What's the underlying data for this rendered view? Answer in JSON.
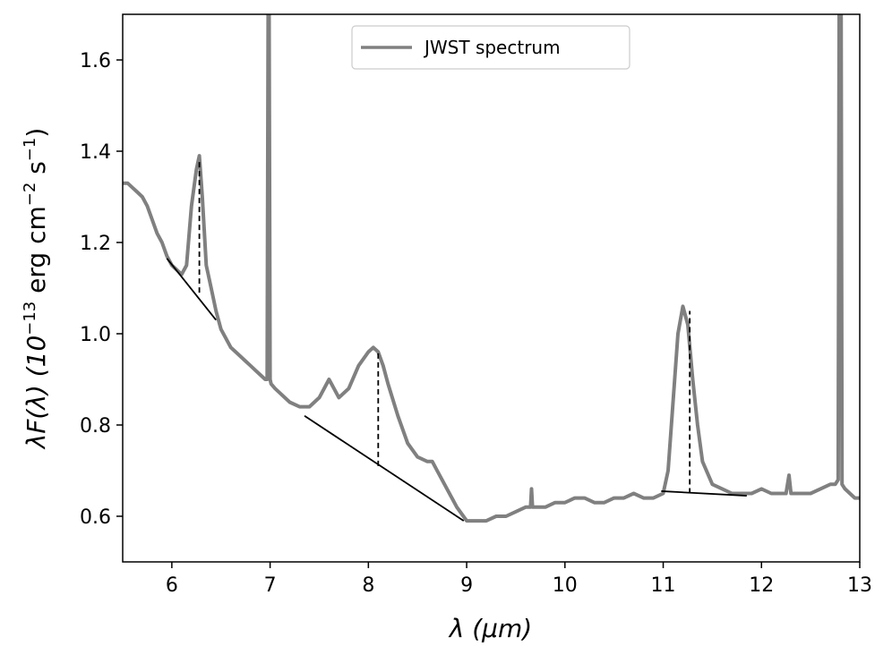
{
  "chart_data": {
    "type": "line",
    "title": "",
    "xlabel": "λ (μm)",
    "ylabel_main": "λF(λ) (10",
    "ylabel_exp1": "−13",
    "ylabel_mid": " erg cm",
    "ylabel_exp2": "−2",
    "ylabel_mid2": " s",
    "ylabel_exp3": "−1",
    "ylabel_end": ")",
    "xlim": [
      5.5,
      13.0
    ],
    "ylim": [
      0.5,
      1.7
    ],
    "xticks": [
      6,
      7,
      8,
      9,
      10,
      11,
      12,
      13
    ],
    "xtick_labels": [
      "6",
      "7",
      "8",
      "9",
      "10",
      "11",
      "12",
      "13"
    ],
    "yticks": [
      0.6,
      0.8,
      1.0,
      1.2,
      1.4,
      1.6
    ],
    "ytick_labels": [
      "0.6",
      "0.8",
      "1.0",
      "1.2",
      "1.4",
      "1.6"
    ],
    "grid": false,
    "legend": {
      "entries": [
        "JWST spectrum"
      ],
      "placement": "top-center"
    },
    "series": [
      {
        "name": "JWST spectrum",
        "color": "#808080",
        "x": [
          5.5,
          5.55,
          5.6,
          5.65,
          5.7,
          5.75,
          5.8,
          5.85,
          5.9,
          5.95,
          6.0,
          6.05,
          6.1,
          6.15,
          6.2,
          6.25,
          6.28,
          6.31,
          6.35,
          6.4,
          6.45,
          6.5,
          6.55,
          6.6,
          6.65,
          6.7,
          6.75,
          6.8,
          6.85,
          6.9,
          6.95,
          6.97,
          6.98,
          6.99,
          7.0,
          7.01,
          7.05,
          7.1,
          7.2,
          7.3,
          7.4,
          7.5,
          7.6,
          7.65,
          7.7,
          7.8,
          7.9,
          8.0,
          8.05,
          8.1,
          8.15,
          8.2,
          8.3,
          8.4,
          8.5,
          8.6,
          8.65,
          8.7,
          8.75,
          8.8,
          8.9,
          9.0,
          9.1,
          9.2,
          9.3,
          9.4,
          9.5,
          9.6,
          9.65,
          9.66,
          9.67,
          9.7,
          9.8,
          9.9,
          10.0,
          10.1,
          10.2,
          10.3,
          10.4,
          10.5,
          10.6,
          10.7,
          10.8,
          10.9,
          11.0,
          11.05,
          11.1,
          11.15,
          11.2,
          11.25,
          11.3,
          11.35,
          11.4,
          11.5,
          11.6,
          11.7,
          11.8,
          11.9,
          12.0,
          12.1,
          12.2,
          12.25,
          12.28,
          12.3,
          12.4,
          12.5,
          12.6,
          12.7,
          12.75,
          12.78,
          12.79,
          12.8,
          12.81,
          12.82,
          12.85,
          12.9,
          12.95,
          13.0
        ],
        "y": [
          1.33,
          1.33,
          1.32,
          1.31,
          1.3,
          1.28,
          1.25,
          1.22,
          1.2,
          1.17,
          1.15,
          1.14,
          1.13,
          1.15,
          1.28,
          1.36,
          1.39,
          1.3,
          1.15,
          1.1,
          1.05,
          1.01,
          0.99,
          0.97,
          0.96,
          0.95,
          0.94,
          0.93,
          0.92,
          0.91,
          0.9,
          0.9,
          1.7,
          1.7,
          0.9,
          0.89,
          0.88,
          0.87,
          0.85,
          0.84,
          0.84,
          0.86,
          0.9,
          0.88,
          0.86,
          0.88,
          0.93,
          0.96,
          0.97,
          0.96,
          0.93,
          0.89,
          0.82,
          0.76,
          0.73,
          0.72,
          0.72,
          0.7,
          0.68,
          0.66,
          0.62,
          0.59,
          0.59,
          0.59,
          0.6,
          0.6,
          0.61,
          0.62,
          0.62,
          0.66,
          0.62,
          0.62,
          0.62,
          0.63,
          0.63,
          0.64,
          0.64,
          0.63,
          0.63,
          0.64,
          0.64,
          0.65,
          0.64,
          0.64,
          0.65,
          0.7,
          0.85,
          1.0,
          1.06,
          1.02,
          0.9,
          0.8,
          0.72,
          0.67,
          0.66,
          0.65,
          0.65,
          0.65,
          0.66,
          0.65,
          0.65,
          0.65,
          0.69,
          0.65,
          0.65,
          0.65,
          0.66,
          0.67,
          0.67,
          0.68,
          1.7,
          1.7,
          1.7,
          0.67,
          0.66,
          0.65,
          0.64,
          0.64
        ]
      }
    ],
    "continuum_lines": [
      {
        "x": [
          5.95,
          6.45
        ],
        "y": [
          1.165,
          1.03
        ]
      },
      {
        "x": [
          7.35,
          8.97
        ],
        "y": [
          0.82,
          0.59
        ]
      },
      {
        "x": [
          10.98,
          11.85
        ],
        "y": [
          0.655,
          0.645
        ]
      }
    ],
    "feature_markers": [
      {
        "x": 6.28,
        "y_bottom": 1.09,
        "y_top": 1.38
      },
      {
        "x": 8.1,
        "y_bottom": 0.71,
        "y_top": 0.96
      },
      {
        "x": 11.27,
        "y_bottom": 0.65,
        "y_top": 1.05
      }
    ]
  }
}
